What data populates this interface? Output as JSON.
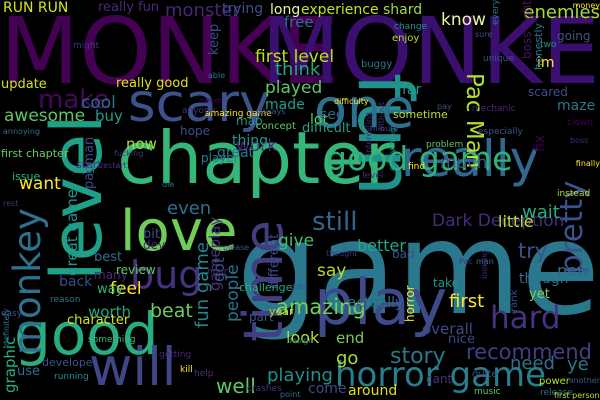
{
  "words": [
    {
      "text": "MONKE",
      "color": "#440154"
    },
    {
      "text": "MONKE",
      "color": "#3b0f70"
    },
    {
      "text": "game",
      "color": "#2a788e"
    },
    {
      "text": "chapter",
      "color": "#35b779"
    },
    {
      "text": "fun",
      "color": "#21918c"
    },
    {
      "text": "scary",
      "color": "#3b528b"
    },
    {
      "text": "one",
      "color": "#2c728e"
    },
    {
      "text": "really",
      "color": "#31688e"
    },
    {
      "text": "level",
      "color": "#1fa187"
    },
    {
      "text": "love",
      "color": "#6ece58"
    },
    {
      "text": "good",
      "color": "#27ad81"
    },
    {
      "text": "play",
      "color": "#3e4a89"
    },
    {
      "text": "time",
      "color": "#433d84"
    },
    {
      "text": "will",
      "color": "#3f4788"
    },
    {
      "text": "horror game",
      "color": "#277f8e"
    },
    {
      "text": "good game",
      "color": "#2db27d"
    },
    {
      "text": "bug",
      "color": "#46337e"
    },
    {
      "text": "monkey",
      "color": "#2c728e"
    },
    {
      "text": "hard",
      "color": "#46327e"
    },
    {
      "text": "make",
      "color": "#46085c"
    },
    {
      "text": "Pac Man",
      "color": "#b5de2b"
    },
    {
      "text": "still",
      "color": "#32658e"
    },
    {
      "text": "well",
      "color": "#5ec962"
    },
    {
      "text": "pretty",
      "color": "#3b528b"
    },
    {
      "text": "story",
      "color": "#2a788e"
    },
    {
      "text": "Dark Deception",
      "color": "#472c7a"
    },
    {
      "text": "playing",
      "color": "#21918c"
    },
    {
      "text": "amazing",
      "color": "#73d056"
    },
    {
      "text": "fun game",
      "color": "#24868e"
    },
    {
      "text": "overall",
      "color": "#3f4889"
    },
    {
      "text": "try",
      "color": "#3b528b"
    },
    {
      "text": "first",
      "color": "#fde725"
    },
    {
      "text": "RUN RUN",
      "color": "#d8e219"
    },
    {
      "text": "monster",
      "color": "#482576"
    },
    {
      "text": "enemies",
      "color": "#a8db34"
    },
    {
      "text": "cool",
      "color": "#2e6e8e"
    },
    {
      "text": "awesome",
      "color": "#5ec962"
    },
    {
      "text": "want",
      "color": "#fde725"
    },
    {
      "text": "great game",
      "color": "#1f968b"
    },
    {
      "text": "graphic",
      "color": "#29af7f"
    },
    {
      "text": "recommend",
      "color": "#433e85"
    },
    {
      "text": "need",
      "color": "#2c728e"
    },
    {
      "text": "look",
      "color": "#bddf26"
    },
    {
      "text": "played",
      "color": "#5ec962"
    },
    {
      "text": "think",
      "color": "#22a884"
    },
    {
      "text": "made",
      "color": "#1fa088"
    },
    {
      "text": "buy",
      "color": "#1f9e89"
    },
    {
      "text": "now",
      "color": "#addc30"
    },
    {
      "text": "even",
      "color": "#2d708e"
    },
    {
      "text": "give",
      "color": "#42be71"
    },
    {
      "text": "feel",
      "color": "#fde725"
    },
    {
      "text": "worth",
      "color": "#22a884"
    },
    {
      "text": "beat",
      "color": "#6ece58"
    },
    {
      "text": "lot",
      "color": "#67cc5c"
    },
    {
      "text": "much",
      "color": "#3a548c"
    },
    {
      "text": "little",
      "color": "#b5de2b"
    },
    {
      "text": "wait",
      "color": "#26ad81"
    },
    {
      "text": "new",
      "color": "#31688e"
    },
    {
      "text": "say",
      "color": "#b5de2b"
    },
    {
      "text": "end",
      "color": "#75d054"
    },
    {
      "text": "go",
      "color": "#a5db36"
    },
    {
      "text": "ye",
      "color": "#2a768e"
    },
    {
      "text": "work",
      "color": "#482878"
    },
    {
      "text": "see",
      "color": "#31688e"
    },
    {
      "text": "people",
      "color": "#2c728e"
    },
    {
      "text": "gameplay",
      "color": "#46327e"
    },
    {
      "text": "better",
      "color": "#22a884"
    },
    {
      "text": "first level",
      "color": "#c2df23"
    },
    {
      "text": "first chapter",
      "color": "#67cc5c"
    },
    {
      "text": "really good",
      "color": "#dde318"
    },
    {
      "text": "update",
      "color": "#d2e21b"
    },
    {
      "text": "know",
      "color": "#ecf5a0"
    },
    {
      "text": "free",
      "color": "#2e6d8e"
    },
    {
      "text": "trying",
      "color": "#3b518b"
    },
    {
      "text": "long",
      "color": "#ecf5a0"
    },
    {
      "text": "experience",
      "color": "#c8e020"
    },
    {
      "text": "shard",
      "color": "#a2da37"
    },
    {
      "text": "keep",
      "color": "#3d4d8a"
    },
    {
      "text": "really fun",
      "color": "#472a7a"
    },
    {
      "text": "boss fight",
      "color": "#471365"
    },
    {
      "text": "im",
      "color": "#fde725"
    },
    {
      "text": "scared",
      "color": "#3d4d8a"
    },
    {
      "text": "far",
      "color": "#1e9c89"
    },
    {
      "text": "going",
      "color": "#3b528b"
    },
    {
      "text": "honestly",
      "color": "#2a788e"
    },
    {
      "text": "thing",
      "color": "#1e9b8a"
    },
    {
      "text": "great",
      "color": "#2a788e"
    },
    {
      "text": "hope",
      "color": "#3e4c8a"
    },
    {
      "text": "player",
      "color": "#26828e"
    },
    {
      "text": "map",
      "color": "#1f988b"
    },
    {
      "text": "difficult",
      "color": "#1fa287"
    },
    {
      "text": "issue",
      "color": "#31b57b"
    },
    {
      "text": "start",
      "color": "#46327e"
    },
    {
      "text": "sometime",
      "color": "#b8de29"
    },
    {
      "text": "maze",
      "color": "#2a788e"
    },
    {
      "text": "fix",
      "color": "#440154"
    },
    {
      "text": "pacman",
      "color": "#3e4a89"
    },
    {
      "text": "dev",
      "color": "#482475"
    },
    {
      "text": "best",
      "color": "#2c728e"
    },
    {
      "text": "bit",
      "color": "#3b528b"
    },
    {
      "text": "many",
      "color": "#482878"
    },
    {
      "text": "review",
      "color": "#5ec962"
    },
    {
      "text": "back",
      "color": "#3e4989"
    },
    {
      "text": "way",
      "color": "#2fb47c"
    },
    {
      "text": "got",
      "color": "#3a548c"
    },
    {
      "text": "different",
      "color": "#3f4788"
    },
    {
      "text": "actually",
      "color": "#31688e"
    },
    {
      "text": "though",
      "color": "#2c728e"
    },
    {
      "text": "yet",
      "color": "#7ad151"
    },
    {
      "text": "part",
      "color": "#3a538b"
    },
    {
      "text": "year",
      "color": "#b5de2b"
    },
    {
      "text": "character",
      "color": "#d5e21a"
    },
    {
      "text": "use",
      "color": "#2d708e"
    },
    {
      "text": "come",
      "color": "#3e4a89"
    },
    {
      "text": "around",
      "color": "#d8e219"
    },
    {
      "text": "horror",
      "color": "#fde725"
    },
    {
      "text": "nice",
      "color": "#3f4889"
    },
    {
      "text": "cant",
      "color": "#46327e"
    },
    {
      "text": "rank",
      "color": "#3e4a89"
    },
    {
      "text": "developer",
      "color": "#3b528b"
    },
    {
      "text": "challenge",
      "color": "#26ad81"
    },
    {
      "text": "concept",
      "color": "#5ec962"
    },
    {
      "text": "amazing game",
      "color": "#fde725"
    },
    {
      "text": "enjoy",
      "color": "#b5de2b"
    },
    {
      "text": "change",
      "color": "#21918c"
    },
    {
      "text": "buggy",
      "color": "#2a788e"
    },
    {
      "text": "anyone",
      "color": "#46327e"
    },
    {
      "text": "mechanic",
      "color": "#482878"
    },
    {
      "text": "especially",
      "color": "#3b528b"
    },
    {
      "text": "clown",
      "color": "#440154"
    },
    {
      "text": "money",
      "color": "#fde725"
    },
    {
      "text": "might",
      "color": "#46327e"
    },
    {
      "text": "two",
      "color": "#1f968b"
    },
    {
      "text": "every",
      "color": "#2a788e"
    },
    {
      "text": "unique",
      "color": "#3b528b"
    },
    {
      "text": "instead",
      "color": "#b5de2b"
    },
    {
      "text": "problem",
      "color": "#5ec962"
    },
    {
      "text": "find",
      "color": "#fde725"
    },
    {
      "text": "bad",
      "color": "#3b528b"
    },
    {
      "text": "take",
      "color": "#1f968b"
    },
    {
      "text": "hour",
      "color": "#482878"
    },
    {
      "text": "super",
      "color": "#21918c"
    },
    {
      "text": "die",
      "color": "#2c728e"
    },
    {
      "text": "fucking",
      "color": "#46327e"
    },
    {
      "text": "please",
      "color": "#3b528b"
    },
    {
      "text": "music",
      "color": "#5ec962"
    },
    {
      "text": "crashes",
      "color": "#46327e"
    },
    {
      "text": "release",
      "color": "#2c728e"
    },
    {
      "text": "power",
      "color": "#b5de2b"
    },
    {
      "text": "quite",
      "color": "#3b528b"
    },
    {
      "text": "something",
      "color": "#35b779"
    },
    {
      "text": "running",
      "color": "#21918c"
    },
    {
      "text": "getting",
      "color": "#482878"
    },
    {
      "text": "kill",
      "color": "#fde725"
    },
    {
      "text": "help",
      "color": "#46327e"
    },
    {
      "text": "easy",
      "color": "#3b528b"
    },
    {
      "text": "reason",
      "color": "#2c728e"
    },
    {
      "text": "level",
      "color": "#482878"
    },
    {
      "text": "annoying",
      "color": "#2c728e"
    },
    {
      "text": "thought",
      "color": "#46327e"
    },
    {
      "text": "minute",
      "color": "#3b528b"
    },
    {
      "text": "finally",
      "color": "#fde725"
    },
    {
      "text": "interesting",
      "color": "#482878"
    },
    {
      "text": "design",
      "color": "#2a788e"
    },
    {
      "text": "gots",
      "color": "#3b528b"
    },
    {
      "text": "definitely",
      "color": "#2c728e"
    },
    {
      "text": "first person",
      "color": "#b5de2b"
    },
    {
      "text": "rest",
      "color": "#46327e"
    },
    {
      "text": "always",
      "color": "#3b528b"
    },
    {
      "text": "never",
      "color": "#440154"
    },
    {
      "text": "restart",
      "color": "#46327e"
    },
    {
      "text": "point",
      "color": "#2c728e"
    },
    {
      "text": "difficulty",
      "color": "#fde725"
    },
    {
      "text": "without",
      "color": "#482878"
    },
    {
      "text": "everything",
      "color": "#21918c"
    },
    {
      "text": "pay",
      "color": "#3b528b"
    },
    {
      "text": "Pac",
      "color": "#46327e"
    },
    {
      "text": "man",
      "color": "#2c728e"
    },
    {
      "text": "another",
      "color": "#3b528b"
    },
    {
      "text": "looking",
      "color": "#46327e"
    },
    {
      "text": "able",
      "color": "#2c728e"
    },
    {
      "text": "boss",
      "color": "#482878"
    },
    {
      "text": "sure",
      "color": "#3b528b"
    }
  ]
}
